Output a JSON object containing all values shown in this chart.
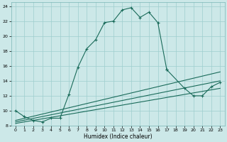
{
  "xlabel": "Humidex (Indice chaleur)",
  "bg_color": "#cce8e8",
  "grid_color": "#9ecece",
  "line_color": "#1a6b5a",
  "xlim": [
    -0.5,
    23.5
  ],
  "ylim": [
    8,
    24.5
  ],
  "xticks": [
    0,
    1,
    2,
    3,
    4,
    5,
    6,
    7,
    8,
    9,
    10,
    11,
    12,
    13,
    14,
    15,
    16,
    17,
    18,
    19,
    20,
    21,
    22,
    23
  ],
  "yticks": [
    8,
    10,
    12,
    14,
    16,
    18,
    20,
    22,
    24
  ],
  "main_x": [
    0,
    1,
    2,
    3,
    4,
    5,
    6,
    7,
    8,
    9,
    10,
    11,
    12,
    13,
    14,
    15,
    16,
    17
  ],
  "main_y": [
    10.0,
    9.2,
    8.7,
    8.5,
    9.0,
    9.0,
    12.2,
    15.8,
    18.3,
    19.5,
    21.8,
    22.0,
    23.5,
    23.8,
    22.5,
    23.2,
    21.8,
    15.5
  ],
  "right_x": [
    17,
    19,
    20,
    21,
    22,
    23
  ],
  "right_y": [
    15.5,
    13.0,
    12.0,
    12.0,
    13.2,
    13.8
  ],
  "line2_x": [
    0,
    23
  ],
  "line2_y": [
    8.7,
    15.2
  ],
  "line3_x": [
    0,
    23
  ],
  "line3_y": [
    8.5,
    14.0
  ],
  "line4_x": [
    0,
    23
  ],
  "line4_y": [
    8.3,
    13.0
  ],
  "right_marker_x": [
    19,
    20,
    21,
    22,
    23
  ],
  "right_marker_y": [
    13.0,
    12.0,
    12.0,
    13.2,
    13.8
  ]
}
